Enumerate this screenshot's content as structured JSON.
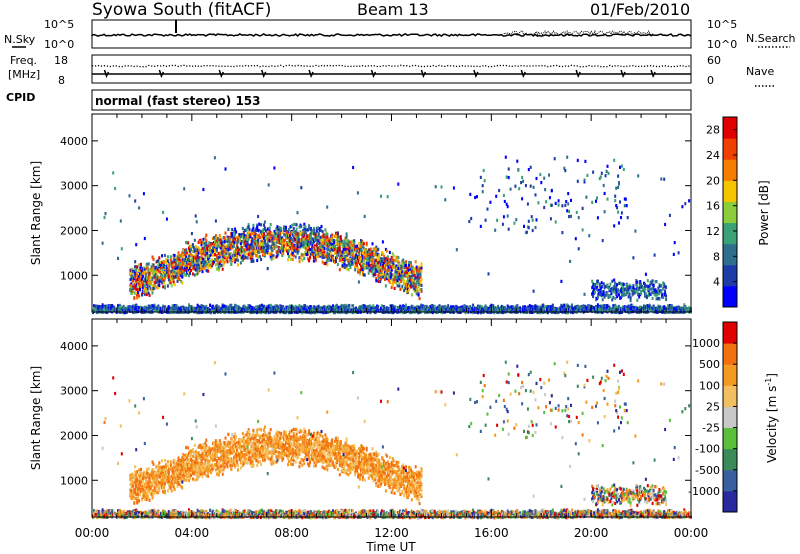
{
  "header": {
    "station": "Syowa South (fitACF)",
    "beam": "Beam 13",
    "date": "01/Feb/2010"
  },
  "noise_panel": {
    "left_label": "N.Sky",
    "left_ticks": [
      "10^5",
      "10^0"
    ],
    "right_label": "N.Search",
    "right_ticks": [
      "10^5",
      "10^0"
    ]
  },
  "freq_panel": {
    "left_label_1": "Freq.",
    "left_label_2": "[MHz]",
    "left_ticks": [
      "18",
      "8"
    ],
    "right_label": "Nave",
    "right_ticks": [
      "60",
      "0"
    ]
  },
  "cpid": {
    "label": "CPID",
    "value": "normal (fast stereo) 153"
  },
  "colors": {
    "power_scale": [
      "#0000ff",
      "#1e3ca8",
      "#2e6f8e",
      "#3aa276",
      "#8ccd3a",
      "#f5c400",
      "#f57e00",
      "#f04000",
      "#e00000"
    ],
    "velocity_scale": [
      "#2a2aa0",
      "#3a5fa0",
      "#3a8a5a",
      "#5ac03a",
      "#c8c8c8",
      "#f2c060",
      "#f59a20",
      "#f27010",
      "#e00000"
    ]
  },
  "chart_data": [
    {
      "type": "heatmap",
      "name": "power",
      "xlabel": "",
      "ylabel": "Slant Range [km]",
      "x_ticks": [
        "00:00",
        "04:00",
        "08:00",
        "12:00",
        "16:00",
        "20:00",
        "00:00"
      ],
      "y_ticks": [
        "1000",
        "2000",
        "3000",
        "4000"
      ],
      "xlim": [
        0,
        24
      ],
      "ylim": [
        180,
        4600
      ],
      "colorbar": {
        "label": "Power [dB]",
        "ticks": [
          "28",
          "24",
          "20",
          "16",
          "12",
          "8",
          "4"
        ],
        "range": [
          0,
          30
        ]
      }
    },
    {
      "type": "heatmap",
      "name": "velocity",
      "xlabel": "Time UT",
      "ylabel": "Slant Range [km]",
      "x_ticks": [
        "00:00",
        "04:00",
        "08:00",
        "12:00",
        "16:00",
        "20:00",
        "00:00"
      ],
      "y_ticks": [
        "1000",
        "2000",
        "3000",
        "4000"
      ],
      "xlim": [
        0,
        24
      ],
      "ylim": [
        180,
        4600
      ],
      "colorbar": {
        "label": "Velocity [m s",
        "label_sup": "-1",
        "label_end": "]",
        "ticks": [
          "1000",
          "500",
          "100",
          "25",
          "-25",
          "-100",
          "-500",
          "-1000"
        ]
      }
    }
  ]
}
